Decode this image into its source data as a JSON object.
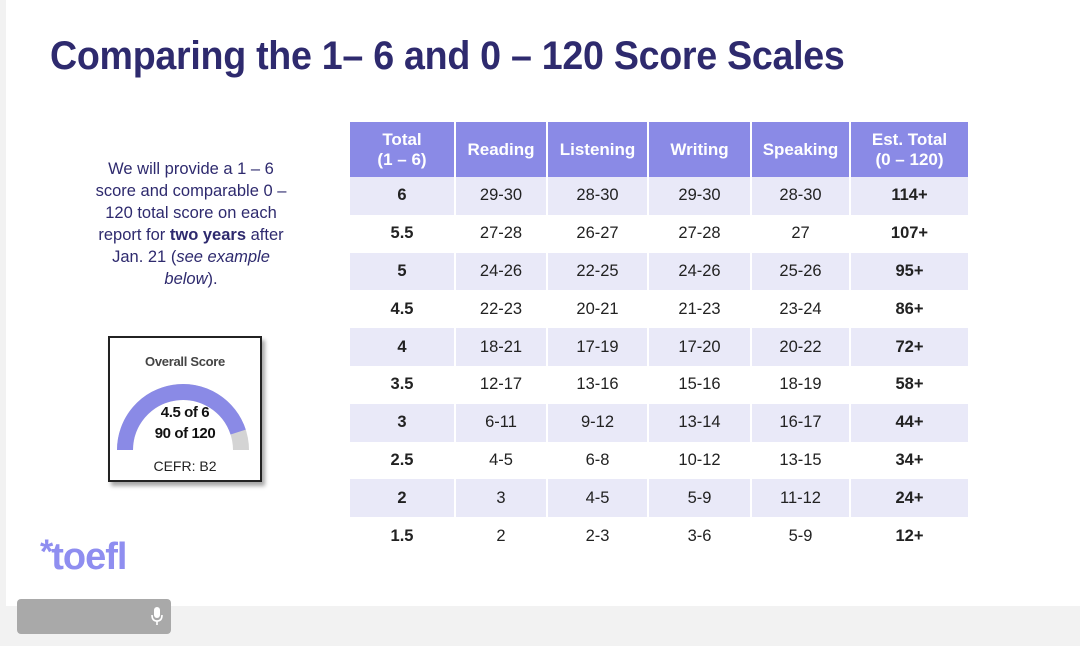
{
  "slide": {
    "title": "Comparing the 1– 6 and 0 – 120 Score Scales",
    "note": {
      "part1": "We will provide a 1 – 6 score and comparable 0 – 120 total score on each report for ",
      "bold": "two years",
      "part2": " after Jan. 21 (",
      "italic": "see example below",
      "part3": ")."
    },
    "scorecard": {
      "label": "Overall Score",
      "line1": "4.5 of 6",
      "line2": "90 of 120",
      "cefr": "CEFR: B2",
      "fill_fraction": 0.75,
      "gauge_color": "#8a8ae6",
      "track_color": "#d4d4d4"
    },
    "brand": {
      "star": "*",
      "name": "toefl"
    },
    "colors": {
      "title": "#2e2a6e",
      "header_bg": "#8a8ae6",
      "row_alt": "#e9e9f8",
      "brand": "#8f8ef0"
    }
  },
  "table": {
    "headers": [
      {
        "line1": "Total",
        "line2": "(1 – 6)"
      },
      {
        "line1": "Reading",
        "line2": ""
      },
      {
        "line1": "Listening",
        "line2": ""
      },
      {
        "line1": "Writing",
        "line2": ""
      },
      {
        "line1": "Speaking",
        "line2": ""
      },
      {
        "line1": "Est. Total",
        "line2": "(0 – 120)"
      }
    ],
    "rows": [
      [
        "6",
        "29-30",
        "28-30",
        "29-30",
        "28-30",
        "114+"
      ],
      [
        "5.5",
        "27-28",
        "26-27",
        "27-28",
        "27",
        "107+"
      ],
      [
        "5",
        "24-26",
        "22-25",
        "24-26",
        "25-26",
        "95+"
      ],
      [
        "4.5",
        "22-23",
        "20-21",
        "21-23",
        "23-24",
        "86+"
      ],
      [
        "4",
        "18-21",
        "17-19",
        "17-20",
        "20-22",
        "72+"
      ],
      [
        "3.5",
        "12-17",
        "13-16",
        "15-16",
        "18-19",
        "58+"
      ],
      [
        "3",
        "6-11",
        "9-12",
        "13-14",
        "16-17",
        "44+"
      ],
      [
        "2.5",
        "4-5",
        "6-8",
        "10-12",
        "13-15",
        "34+"
      ],
      [
        "2",
        "3",
        "4-5",
        "5-9",
        "11-12",
        "24+"
      ],
      [
        "1.5",
        "2",
        "2-3",
        "3-6",
        "5-9",
        "12+"
      ]
    ]
  },
  "taskbar": {
    "mic_icon": "microphone-icon"
  }
}
